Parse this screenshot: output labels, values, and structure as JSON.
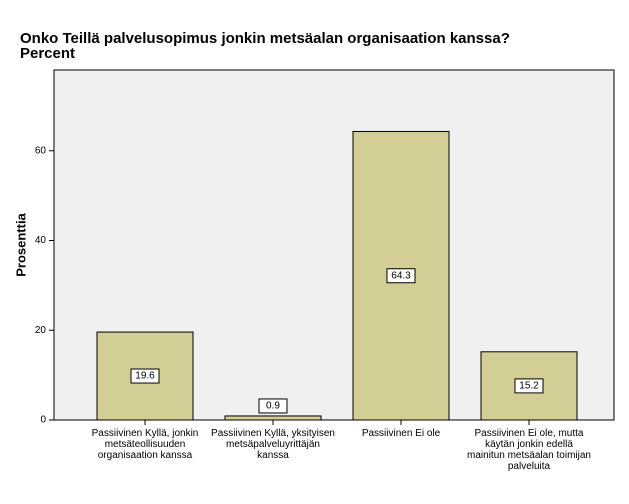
{
  "chart_data": {
    "type": "bar",
    "title": "Onko Teillä palvelusopimus jonkin metsäalan organisaation kanssa?",
    "subtitle": "Percent",
    "y_label": "Prosenttia",
    "categories": [
      "Passiivinen  Kyllä, jonkin metsäteollisuuden organisaation kanssa",
      "Passiivinen  Kyllä, yksityisen metsäpalveluyrittäjän kanssa",
      "Passiivinen  Ei ole",
      "Passiivinen  Ei ole, mutta käytän jonkin edellä mainitun metsäalan toimijan palveluita"
    ],
    "values": [
      19.6,
      0.9,
      64.3,
      15.2
    ],
    "color": "#d3ce96",
    "ylim": [
      0,
      78
    ],
    "yticks": [
      0,
      20,
      40,
      60
    ],
    "grid": false
  }
}
